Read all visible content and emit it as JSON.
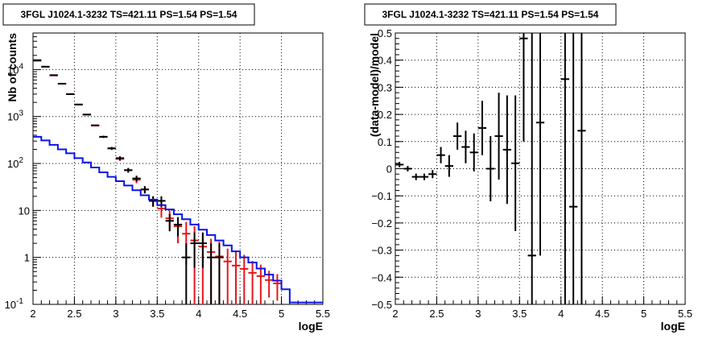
{
  "chart_data": [
    {
      "type": "scatter",
      "title": "3FGL J1024.1-3232 TS=421.11 PS=1.54 PS=1.54",
      "xlabel": "logE",
      "ylabel": "Nb of counts",
      "xlim": [
        2,
        5.5
      ],
      "ylim": [
        0.1,
        60000
      ],
      "yscale": "log",
      "grid": true,
      "xticks": [
        "2",
        "2.5",
        "3",
        "3.5",
        "4",
        "4.5",
        "5",
        "5.5"
      ],
      "yticks": [
        {
          "value": 0.1,
          "base": "10",
          "exp": "-1"
        },
        {
          "value": 1,
          "label": "1"
        },
        {
          "value": 10,
          "label": "10"
        },
        {
          "value": 100,
          "base": "10",
          "exp": "2"
        },
        {
          "value": 1000,
          "base": "10",
          "exp": "3"
        },
        {
          "value": 10000,
          "base": "10",
          "exp": "4"
        }
      ],
      "series": [
        {
          "color": "#e8141a",
          "kind": "points",
          "x": [
            2.05,
            2.15,
            2.25,
            2.35,
            2.45,
            2.55,
            2.65,
            2.75,
            2.85,
            2.95,
            3.05,
            3.15,
            3.25,
            3.35,
            3.45,
            3.55,
            3.65,
            3.75,
            3.85,
            3.95,
            4.05,
            4.15,
            4.25,
            4.35,
            4.45,
            4.55,
            4.65,
            4.75,
            4.85,
            4.95
          ],
          "y": [
            16000,
            11500,
            7500,
            5000,
            3000,
            1800,
            1100,
            640,
            370,
            210,
            125,
            72,
            45,
            28,
            16,
            11,
            6.8,
            4.6,
            3.2,
            2.3,
            1.7,
            1.3,
            1.05,
            0.82,
            0.67,
            0.57,
            0.47,
            0.4,
            0.33,
            0.28
          ],
          "yerr": [
            0,
            0,
            0,
            0,
            0,
            0,
            0,
            0,
            20,
            15,
            12,
            8,
            7,
            4,
            4,
            4,
            3.1,
            2.6,
            2.5,
            2.3,
            1.6,
            1.2,
            1.1,
            0.72,
            0.67,
            0.57,
            0.37,
            0.3,
            0.19,
            0.16
          ]
        },
        {
          "color": "#000000",
          "kind": "points",
          "x": [
            2.05,
            2.15,
            2.25,
            2.35,
            2.45,
            2.55,
            2.65,
            2.75,
            2.85,
            2.95,
            3.05,
            3.15,
            3.25,
            3.35,
            3.45,
            3.55,
            3.65,
            3.75,
            3.85,
            3.95,
            4.05,
            4.15,
            4.25
          ],
          "y": [
            15500,
            11500,
            7600,
            5000,
            3000,
            1800,
            1100,
            650,
            370,
            210,
            130,
            72,
            48,
            28,
            16,
            16,
            6,
            5,
            1,
            2,
            2,
            1,
            1
          ],
          "yerr": [
            0,
            0,
            0,
            0,
            0,
            0,
            0,
            0,
            20,
            15,
            12,
            8,
            7,
            5,
            4,
            4,
            2.4,
            2.2,
            1,
            1.4,
            1.4,
            1,
            1
          ]
        },
        {
          "color": "#0a14e6",
          "kind": "step",
          "edges": [
            2.0,
            2.1,
            2.2,
            2.3,
            2.4,
            2.5,
            2.6,
            2.7,
            2.8,
            2.9,
            3.0,
            3.1,
            3.2,
            3.3,
            3.4,
            3.5,
            3.6,
            3.7,
            3.8,
            3.9,
            4.0,
            4.1,
            4.2,
            4.3,
            4.4,
            4.5,
            4.6,
            4.7,
            4.8,
            4.9,
            5.0,
            5.1,
            5.2,
            5.3,
            5.4,
            5.5
          ],
          "values": [
            370,
            310,
            250,
            200,
            165,
            130,
            105,
            82,
            65,
            52,
            42,
            34,
            27,
            21,
            17,
            13,
            10.5,
            8.3,
            6.5,
            5.0,
            3.9,
            3.0,
            2.3,
            1.8,
            1.35,
            1.0,
            0.78,
            0.58,
            0.43,
            0.32,
            0.21,
            0.11,
            0.11,
            0.11,
            0.11
          ]
        }
      ]
    },
    {
      "type": "scatter",
      "title": "3FGL J1024.1-3232 TS=421.11 PS=1.54 PS=1.54",
      "xlabel": "logE",
      "ylabel": "(data-model)/model",
      "xlim": [
        2,
        5.5
      ],
      "ylim": [
        -0.5,
        0.5
      ],
      "grid": true,
      "xticks": [
        "2",
        "2.5",
        "3",
        "3.5",
        "4",
        "4.5",
        "5",
        "5.5"
      ],
      "yticks": [
        "−0.5",
        "−0.4",
        "−0.3",
        "−0.2",
        "−0.1",
        "0",
        "0.1",
        "0.2",
        "0.3",
        "0.4",
        "0.5"
      ],
      "series": [
        {
          "color": "#000000",
          "kind": "points",
          "x": [
            2.05,
            2.15,
            2.25,
            2.35,
            2.45,
            2.55,
            2.65,
            2.75,
            2.85,
            2.95,
            3.05,
            3.15,
            3.25,
            3.35,
            3.45,
            3.55,
            3.65,
            3.75,
            4.05,
            4.15,
            4.25
          ],
          "y": [
            0.015,
            0.0,
            -0.03,
            -0.03,
            -0.02,
            0.05,
            0.01,
            0.12,
            0.08,
            0.06,
            0.15,
            0.0,
            0.12,
            0.07,
            0.02,
            0.48,
            -0.32,
            0.17,
            0.33,
            -0.14,
            0.14
          ],
          "yerr": [
            0.01,
            0.01,
            0.012,
            0.012,
            0.015,
            0.03,
            0.04,
            0.05,
            0.06,
            0.07,
            0.1,
            0.12,
            0.16,
            0.2,
            0.25,
            0.38,
            0.9,
            0.49,
            1.5,
            1.5,
            1.5
          ]
        }
      ]
    }
  ]
}
